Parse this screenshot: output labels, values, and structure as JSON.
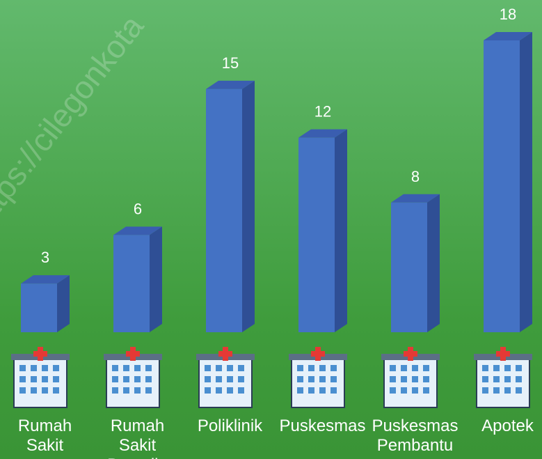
{
  "chart_data": {
    "type": "bar3d",
    "watermark": "https://cilegonkota",
    "categories": [
      "Rumah Sakit",
      "Rumah Sakit Bersalin",
      "Poliklinik",
      "Puskesmas",
      "Puskesmas Pembantu",
      "Apotek"
    ],
    "values": [
      3,
      6,
      15,
      12,
      8,
      18
    ],
    "color": "#4472c4"
  }
}
